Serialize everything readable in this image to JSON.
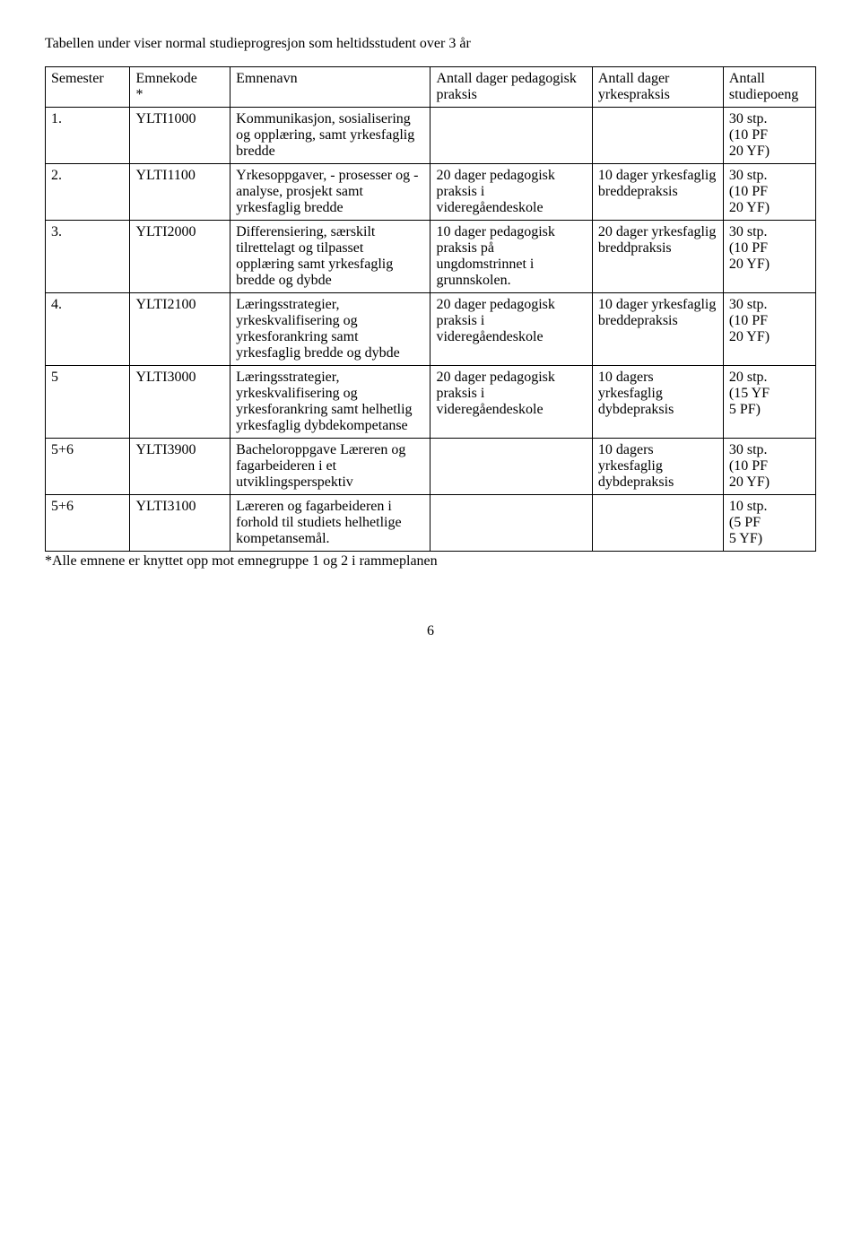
{
  "intro": "Tabellen under viser normal studieprogresjon som heltidsstudent over 3 år",
  "headers": {
    "semester": "Semester",
    "emnekode": "Emnekode\n*",
    "emnenavn": "Emnenavn",
    "antall_ped": "Antall dager pedagogisk praksis",
    "antall_yrk": "Antall dager yrkespraksis",
    "antall_stp": "Antall studiepoeng"
  },
  "rows": [
    {
      "semester": "1.",
      "emnekode": "YLTI1000",
      "emnenavn": "Kommunikasjon, sosialisering og opplæring, samt yrkesfaglig bredde",
      "ped": "",
      "yrk": "",
      "stp": " 30 stp.\n(10 PF\n20 YF)"
    },
    {
      "semester": "2.",
      "emnekode": "YLTI1100",
      "emnenavn": "Yrkesoppgaver, - prosesser og -analyse, prosjekt samt yrkesfaglig bredde",
      "ped": "20 dager pedagogisk praksis i videregåendeskole",
      "yrk": "10 dager yrkesfaglig breddepraksis",
      "stp": " 30 stp.\n(10 PF\n20 YF)"
    },
    {
      "semester": "3.",
      "emnekode": "YLTI2000",
      "emnenavn": "Differensiering, særskilt tilrettelagt og tilpasset opplæring samt yrkesfaglig bredde og dybde",
      "ped": "10 dager pedagogisk praksis på ungdomstrinnet i grunnskolen.",
      "yrk": "20 dager yrkesfaglig breddpraksis",
      "stp": " 30 stp.\n(10 PF\n20 YF)"
    },
    {
      "semester": "4.",
      "emnekode": "YLTI2100",
      "emnenavn": "Læringsstrategier, yrkeskvalifisering og yrkesforankring samt yrkesfaglig bredde og dybde",
      "ped": "20 dager pedagogisk praksis i videregåendeskole",
      "yrk": "10 dager yrkesfaglig breddepraksis",
      "stp": "30 stp.\n (10 PF\n20 YF)"
    },
    {
      "semester": "5",
      "emnekode": "YLTI3000",
      "emnenavn": "Læringsstrategier, yrkeskvalifisering og yrkesforankring samt helhetlig yrkesfaglig dybdekompetanse",
      "ped": "20 dager pedagogisk praksis i videregåendeskole",
      "yrk": "10 dagers yrkesfaglig dybdepraksis",
      "stp": "20 stp.\n(15 YF\n5 PF)"
    },
    {
      "semester": "5+6",
      "emnekode": "YLTI3900",
      "emnenavn": "Bacheloroppgave Læreren og fagarbeideren i et utviklingsperspektiv",
      "ped": "",
      "yrk": "10 dagers yrkesfaglig dybdepraksis",
      "stp": "30 stp.\n (10 PF\n20 YF)"
    },
    {
      "semester": "5+6",
      "emnekode": "YLTI3100",
      "emnenavn": "Læreren og fagarbeideren i forhold til studiets helhetlige kompetansemål.",
      "ped": "",
      "yrk": "",
      "stp": "10 stp.\n(5 PF\n5 YF)"
    }
  ],
  "footnote": "*Alle emnene er knyttet opp mot emnegruppe 1 og 2 i rammeplanen",
  "page_number": "6"
}
